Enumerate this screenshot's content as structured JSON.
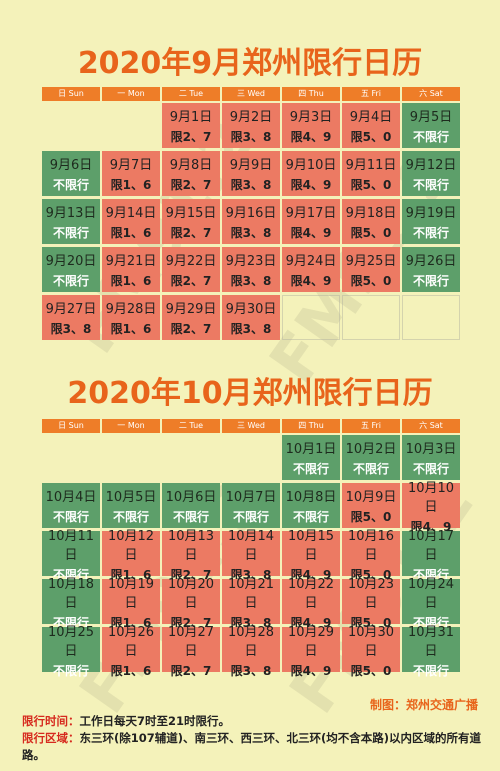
{
  "sept": {
    "title": "2020年9月郑州限行日历",
    "weekdays": [
      "日 Sun",
      "一 Mon",
      "二 Tue",
      "三 Wed",
      "四 Thu",
      "五 Fri",
      "六 Sat"
    ],
    "offset": 2,
    "days": [
      {
        "date": "9月1日",
        "rule": "限2、7",
        "type": "red"
      },
      {
        "date": "9月2日",
        "rule": "限3、8",
        "type": "red"
      },
      {
        "date": "9月3日",
        "rule": "限4、9",
        "type": "red"
      },
      {
        "date": "9月4日",
        "rule": "限5、0",
        "type": "red"
      },
      {
        "date": "9月5日",
        "rule": "不限行",
        "type": "green"
      },
      {
        "date": "9月6日",
        "rule": "不限行",
        "type": "green"
      },
      {
        "date": "9月7日",
        "rule": "限1、6",
        "type": "red"
      },
      {
        "date": "9月8日",
        "rule": "限2、7",
        "type": "red"
      },
      {
        "date": "9月9日",
        "rule": "限3、8",
        "type": "red"
      },
      {
        "date": "9月10日",
        "rule": "限4、9",
        "type": "red"
      },
      {
        "date": "9月11日",
        "rule": "限5、0",
        "type": "red"
      },
      {
        "date": "9月12日",
        "rule": "不限行",
        "type": "green"
      },
      {
        "date": "9月13日",
        "rule": "不限行",
        "type": "green"
      },
      {
        "date": "9月14日",
        "rule": "限1、6",
        "type": "red"
      },
      {
        "date": "9月15日",
        "rule": "限2、7",
        "type": "red"
      },
      {
        "date": "9月16日",
        "rule": "限3、8",
        "type": "red"
      },
      {
        "date": "9月17日",
        "rule": "限4、9",
        "type": "red"
      },
      {
        "date": "9月18日",
        "rule": "限5、0",
        "type": "red"
      },
      {
        "date": "9月19日",
        "rule": "不限行",
        "type": "green"
      },
      {
        "date": "9月20日",
        "rule": "不限行",
        "type": "green"
      },
      {
        "date": "9月21日",
        "rule": "限1、6",
        "type": "red"
      },
      {
        "date": "9月22日",
        "rule": "限2、7",
        "type": "red"
      },
      {
        "date": "9月23日",
        "rule": "限3、8",
        "type": "red"
      },
      {
        "date": "9月24日",
        "rule": "限4、9",
        "type": "red"
      },
      {
        "date": "9月25日",
        "rule": "限5、0",
        "type": "red"
      },
      {
        "date": "9月26日",
        "rule": "不限行",
        "type": "green"
      },
      {
        "date": "9月27日",
        "rule": "限3、8",
        "type": "red"
      },
      {
        "date": "9月28日",
        "rule": "限1、6",
        "type": "red"
      },
      {
        "date": "9月29日",
        "rule": "限2、7",
        "type": "red"
      },
      {
        "date": "9月30日",
        "rule": "限3、8",
        "type": "red"
      }
    ],
    "trailing_empty": 3
  },
  "oct": {
    "title": "2020年10月郑州限行日历",
    "weekdays": [
      "日 Sun",
      "一 Mon",
      "二 Tue",
      "三 Wed",
      "四 Thu",
      "五 Fri",
      "六 Sat"
    ],
    "offset": 4,
    "days": [
      {
        "date": "10月1日",
        "rule": "不限行",
        "type": "green"
      },
      {
        "date": "10月2日",
        "rule": "不限行",
        "type": "green"
      },
      {
        "date": "10月3日",
        "rule": "不限行",
        "type": "green"
      },
      {
        "date": "10月4日",
        "rule": "不限行",
        "type": "green"
      },
      {
        "date": "10月5日",
        "rule": "不限行",
        "type": "green"
      },
      {
        "date": "10月6日",
        "rule": "不限行",
        "type": "green"
      },
      {
        "date": "10月7日",
        "rule": "不限行",
        "type": "green"
      },
      {
        "date": "10月8日",
        "rule": "不限行",
        "type": "green"
      },
      {
        "date": "10月9日",
        "rule": "限5、0",
        "type": "red"
      },
      {
        "date": "10月10日",
        "rule": "限4、9",
        "type": "red"
      },
      {
        "date": "10月11日",
        "rule": "不限行",
        "type": "green"
      },
      {
        "date": "10月12日",
        "rule": "限1、6",
        "type": "red"
      },
      {
        "date": "10月13日",
        "rule": "限2、7",
        "type": "red"
      },
      {
        "date": "10月14日",
        "rule": "限3、8",
        "type": "red"
      },
      {
        "date": "10月15日",
        "rule": "限4、9",
        "type": "red"
      },
      {
        "date": "10月16日",
        "rule": "限5、0",
        "type": "red"
      },
      {
        "date": "10月17日",
        "rule": "不限行",
        "type": "green"
      },
      {
        "date": "10月18日",
        "rule": "不限行",
        "type": "green"
      },
      {
        "date": "10月19日",
        "rule": "限1、6",
        "type": "red"
      },
      {
        "date": "10月20日",
        "rule": "限2、7",
        "type": "red"
      },
      {
        "date": "10月21日",
        "rule": "限3、8",
        "type": "red"
      },
      {
        "date": "10月22日",
        "rule": "限4、9",
        "type": "red"
      },
      {
        "date": "10月23日",
        "rule": "限5、0",
        "type": "red"
      },
      {
        "date": "10月24日",
        "rule": "不限行",
        "type": "green"
      },
      {
        "date": "10月25日",
        "rule": "不限行",
        "type": "green"
      },
      {
        "date": "10月26日",
        "rule": "限1、6",
        "type": "red"
      },
      {
        "date": "10月27日",
        "rule": "限2、7",
        "type": "red"
      },
      {
        "date": "10月28日",
        "rule": "限3、8",
        "type": "red"
      },
      {
        "date": "10月29日",
        "rule": "限4、9",
        "type": "red"
      },
      {
        "date": "10月30日",
        "rule": "限5、0",
        "type": "red"
      },
      {
        "date": "10月31日",
        "rule": "不限行",
        "type": "green"
      }
    ],
    "trailing_empty": 0
  },
  "credit": "制图：郑州交通广播",
  "notes": {
    "time_label": "限行时间：",
    "time_value": "工作日每天7时至21时限行。",
    "area_label": "限行区域：",
    "area_value": "东三环(除107辅道)、南三环、西三环、北三环(均不含本路)以内区域的所有道路。"
  },
  "colors": {
    "red": "#ec7a63",
    "green": "#5d9f6a",
    "accent": "#e8641b",
    "background": "#f4f2ba"
  }
}
